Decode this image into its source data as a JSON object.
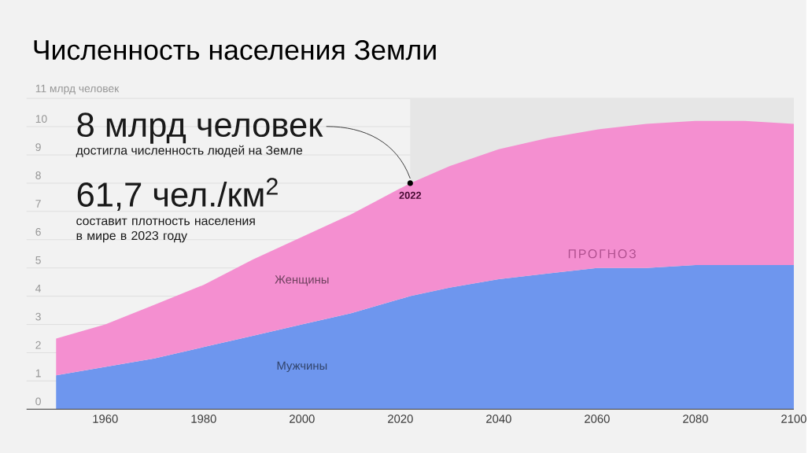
{
  "chart_data": {
    "type": "area",
    "stacked": true,
    "title": "Численность населения Земли",
    "x": [
      1950,
      1960,
      1970,
      1980,
      1990,
      2000,
      2010,
      2022,
      2030,
      2040,
      2050,
      2060,
      2070,
      2080,
      2090,
      2100
    ],
    "series": [
      {
        "name": "Мужчины",
        "color": "#6e96ee",
        "values": [
          1.2,
          1.5,
          1.8,
          2.2,
          2.6,
          3.0,
          3.4,
          4.0,
          4.3,
          4.6,
          4.8,
          5.0,
          5.0,
          5.1,
          5.1,
          5.1
        ]
      },
      {
        "name": "Женщины",
        "color": "#f48fd0",
        "values": [
          1.3,
          1.5,
          1.9,
          2.2,
          2.7,
          3.1,
          3.5,
          4.0,
          4.3,
          4.6,
          4.8,
          4.9,
          5.1,
          5.1,
          5.1,
          5.0
        ]
      }
    ],
    "xlim": [
      1944,
      2100
    ],
    "ylim": [
      0,
      11
    ],
    "xticks": [
      1960,
      1980,
      2000,
      2020,
      2040,
      2060,
      2080,
      2100
    ],
    "yticks": [
      0,
      1,
      2,
      3,
      4,
      5,
      6,
      7,
      8,
      9,
      10,
      {
        "value": 11,
        "label": "11 млрд человек"
      }
    ],
    "grid": "y",
    "bands": [
      {
        "axis": "x",
        "from": 2022,
        "to": 2100,
        "label": "ПРОГНОЗ",
        "color": "#e6e6e6"
      }
    ],
    "annotations": [
      {
        "text": "8 млрд человек",
        "x": 2022,
        "y": 8
      },
      "достигла численность людей на Земле",
      "61,7 чел./км$^{2}$",
      "составит плотность населения в мире в 2023 году",
      {
        "text": "2022",
        "x": 2022,
        "y": 8
      }
    ]
  }
}
